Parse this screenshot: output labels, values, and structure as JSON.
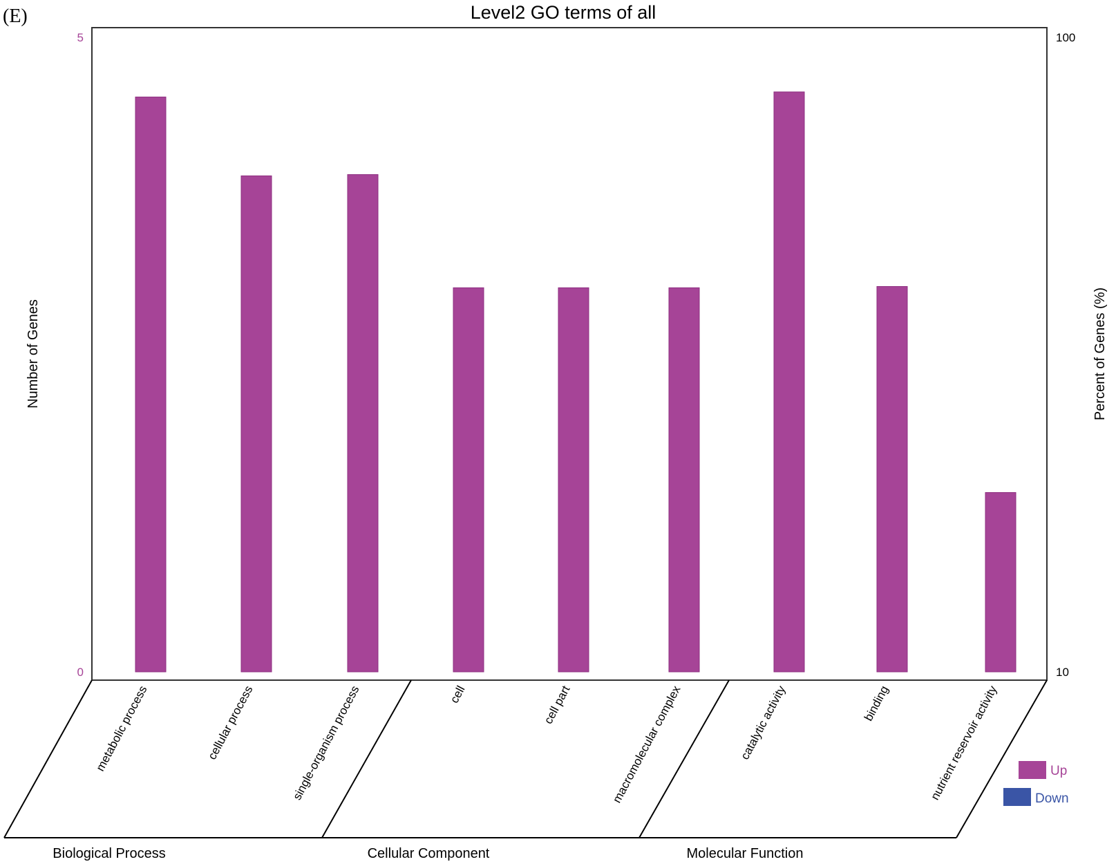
{
  "panel_label": "(E)",
  "chart_data": {
    "type": "bar",
    "title": "Level2 GO terms of all",
    "ylabel": "Number of Genes",
    "ylabel_right": "Percent of Genes (%)",
    "ylim": [
      0,
      5
    ],
    "yticks": [
      "0",
      "5"
    ],
    "yticks_right": [
      "10",
      "100"
    ],
    "categories": [
      "metabolic process",
      "cellular process",
      "single-organism process",
      "cell",
      "cell part",
      "macromolecular complex",
      "catalytic activity",
      "binding",
      "nutrient reservoir activity"
    ],
    "groups": [
      {
        "name": "Biological Process",
        "count": 3
      },
      {
        "name": "Cellular Component",
        "count": 3
      },
      {
        "name": "Molecular Function",
        "count": 3
      }
    ],
    "series": [
      {
        "name": "Up",
        "color": "#a64497",
        "values": [
          4.52,
          3.9,
          3.91,
          3.02,
          3.02,
          3.02,
          4.56,
          3.03,
          1.41
        ]
      },
      {
        "name": "Down",
        "color": "#3a55a6",
        "values": [
          0,
          0,
          0,
          0,
          0,
          0,
          0,
          0,
          0
        ]
      }
    ],
    "legend_position": "bottom-right"
  }
}
